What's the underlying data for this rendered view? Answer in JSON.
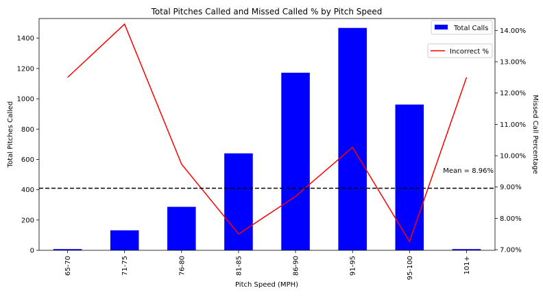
{
  "chart_data": {
    "type": "bar",
    "title": "Total Pitches Called and Missed Called % by Pitch Speed",
    "xlabel": "Pitch Speed (MPH)",
    "ylabel": "Total Pitches Called",
    "y2label": "Missed Call Percentage",
    "categories": [
      "65-70",
      "71-75",
      "76-80",
      "81-85",
      "86-90",
      "91-95",
      "95-100",
      "101+"
    ],
    "ylim": [
      0,
      1530
    ],
    "yticks": [
      0,
      200,
      400,
      600,
      800,
      1000,
      1200,
      1400
    ],
    "y2lim": [
      6.98,
      14.38
    ],
    "y2ticks": [
      7,
      8,
      9,
      10,
      11,
      12,
      13,
      14
    ],
    "y2tick_format": "percent_2dp",
    "series": [
      {
        "name": "Total Calls",
        "type": "bar",
        "axis": "left",
        "color": "#0000ff",
        "values": [
          8,
          132,
          287,
          640,
          1172,
          1468,
          962,
          8
        ]
      },
      {
        "name": "Incorrect %",
        "type": "line",
        "axis": "right",
        "color": "#ff0000",
        "values": [
          12.5,
          14.2,
          9.73,
          7.5,
          8.7,
          10.27,
          7.26,
          12.5
        ]
      }
    ],
    "mean_line": {
      "value": 8.96,
      "axis": "right",
      "label": "Mean = 8.96%",
      "style": "dashed",
      "color": "#000000"
    },
    "legends": [
      {
        "label": "Total Calls",
        "marker": "patch",
        "color": "#0000ff",
        "placement": "top-right"
      },
      {
        "label": "Incorrect %",
        "marker": "line",
        "color": "#ff0000",
        "placement": "top-right (below)"
      }
    ],
    "grid": false
  }
}
